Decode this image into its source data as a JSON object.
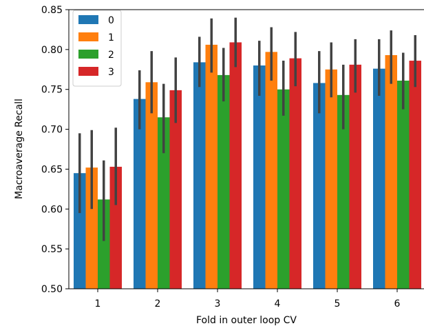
{
  "chart_data": {
    "type": "bar",
    "xlabel": "Fold in outer loop CV",
    "ylabel": "Macroaverage Recall",
    "ylim": [
      0.5,
      0.85
    ],
    "yticks": [
      "0.50",
      "0.55",
      "0.60",
      "0.65",
      "0.70",
      "0.75",
      "0.80",
      "0.85"
    ],
    "categories": [
      "1",
      "2",
      "3",
      "4",
      "5",
      "6"
    ],
    "legend_position": "top-left",
    "series": [
      {
        "name": "0",
        "color": "#1f77b4",
        "values": [
          0.645,
          0.738,
          0.784,
          0.78,
          0.758,
          0.776
        ],
        "error_low": [
          0.595,
          0.7,
          0.753,
          0.742,
          0.72,
          0.742
        ],
        "error_high": [
          0.695,
          0.774,
          0.816,
          0.811,
          0.798,
          0.813
        ]
      },
      {
        "name": "1",
        "color": "#ff7f0e",
        "values": [
          0.652,
          0.759,
          0.806,
          0.797,
          0.775,
          0.793
        ],
        "error_low": [
          0.6,
          0.72,
          0.771,
          0.761,
          0.74,
          0.757
        ],
        "error_high": [
          0.699,
          0.798,
          0.839,
          0.828,
          0.809,
          0.824
        ]
      },
      {
        "name": "2",
        "color": "#2ca02c",
        "values": [
          0.612,
          0.715,
          0.768,
          0.75,
          0.743,
          0.761
        ],
        "error_low": [
          0.56,
          0.67,
          0.735,
          0.717,
          0.7,
          0.725
        ],
        "error_high": [
          0.661,
          0.757,
          0.802,
          0.786,
          0.781,
          0.796
        ]
      },
      {
        "name": "3",
        "color": "#d62728",
        "values": [
          0.653,
          0.749,
          0.809,
          0.789,
          0.781,
          0.786
        ],
        "error_low": [
          0.605,
          0.708,
          0.778,
          0.754,
          0.746,
          0.753
        ],
        "error_high": [
          0.702,
          0.79,
          0.84,
          0.822,
          0.813,
          0.818
        ]
      }
    ]
  }
}
